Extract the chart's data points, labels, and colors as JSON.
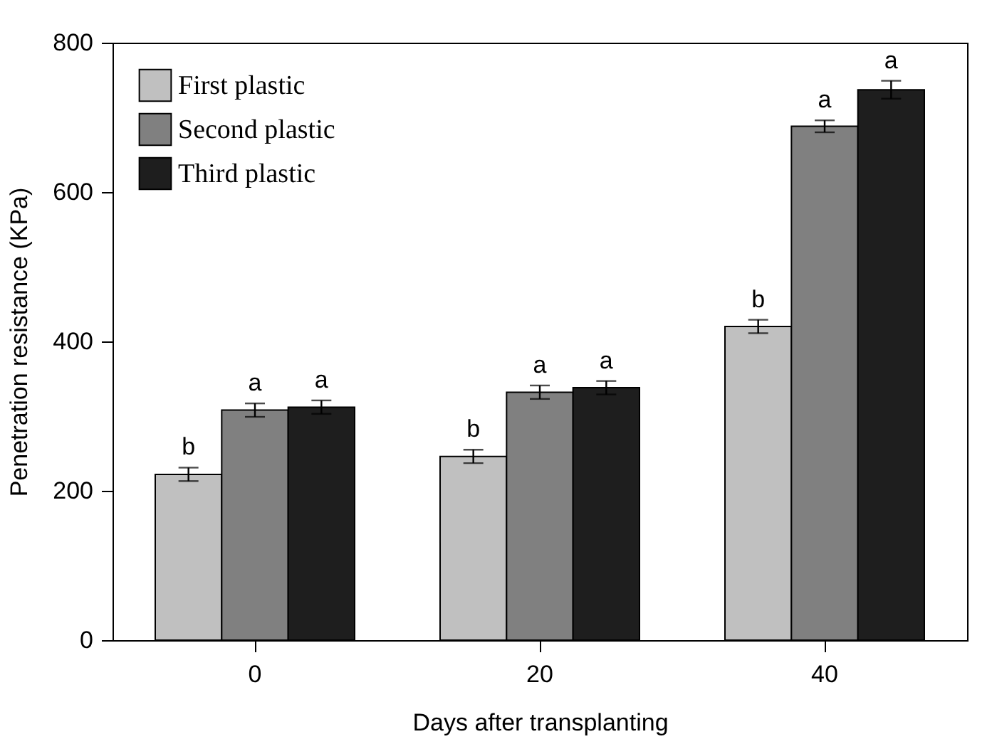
{
  "chart_data": {
    "type": "bar",
    "xlabel": "Days after transplanting",
    "ylabel": "Penetration resistance (KPa)",
    "categories": [
      "0",
      "20",
      "40"
    ],
    "series": [
      {
        "name": "First plastic",
        "color": "#c0c0c0",
        "values": [
          222,
          246,
          420
        ],
        "errors": [
          9,
          9,
          9
        ],
        "value_labels": [
          "b",
          "b",
          "b"
        ]
      },
      {
        "name": "Second plastic",
        "color": "#808080",
        "values": [
          308,
          332,
          688
        ],
        "errors": [
          9,
          9,
          8
        ],
        "value_labels": [
          "a",
          "a",
          "a"
        ]
      },
      {
        "name": "Third plastic",
        "color": "#1e1e1e",
        "values": [
          312,
          338,
          737
        ],
        "errors": [
          9,
          9,
          12
        ],
        "value_labels": [
          "a",
          "a",
          "a"
        ]
      }
    ],
    "ylim": [
      0,
      800
    ],
    "yticks": [
      0,
      200,
      400,
      600,
      800
    ],
    "legend": "top left",
    "grid": false
  }
}
